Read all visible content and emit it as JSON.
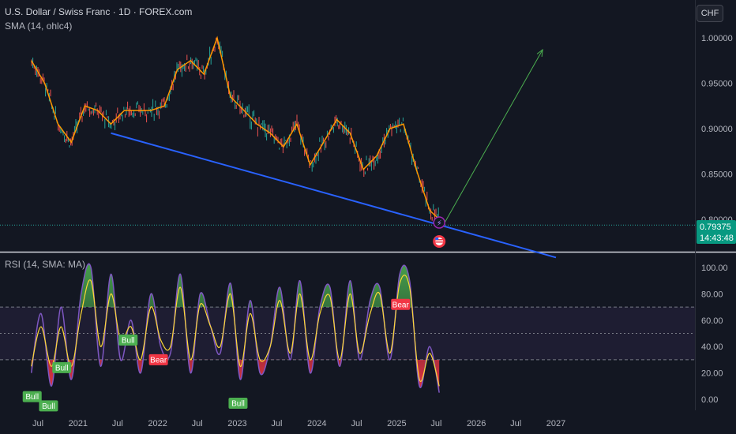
{
  "header": {
    "symbol_line": "U.S. Dollar / Swiss Franc · 1D · FOREX.com",
    "sma_line": "SMA (14, ohlc4)",
    "rsi_line": "RSI (14, SMA: MA)",
    "currency_button": "CHF"
  },
  "price_badge": {
    "price": "0.79375",
    "countdown": "14:43:48"
  },
  "colors": {
    "background": "#131722",
    "trendline": "#2962ff",
    "projection_arrow": "#4caf50",
    "sma": "#ff9800",
    "rsi_line": "#7e57c2",
    "rsi_ma": "#fdd835",
    "bull_tag": "#4caf50",
    "bear_tag": "#f23645",
    "up_candle": "#26a69a",
    "down_candle": "#ef5350"
  },
  "chart_data": [
    {
      "type": "line",
      "title": "U.S. Dollar / Swiss Franc · 1D · FOREX.com",
      "y_axis_ticks": [
        "1.00000",
        "0.95000",
        "0.90000",
        "0.85000",
        "0.80000"
      ],
      "ylim": [
        0.785,
        1.025
      ],
      "x_axis_ticks": [
        "Jul",
        "2021",
        "Jul",
        "2022",
        "Jul",
        "2023",
        "Jul",
        "2024",
        "Jul",
        "2025",
        "Jul",
        "2026",
        "Jul",
        "2027"
      ],
      "x": [
        "2020-06-01",
        "2020-08-01",
        "2020-10-01",
        "2020-12-01",
        "2021-02-01",
        "2021-04-01",
        "2021-06-01",
        "2021-08-01",
        "2021-10-01",
        "2021-12-01",
        "2022-02-01",
        "2022-04-01",
        "2022-06-01",
        "2022-08-01",
        "2022-10-01",
        "2022-12-01",
        "2023-02-01",
        "2023-04-01",
        "2023-06-01",
        "2023-08-01",
        "2023-10-01",
        "2023-12-01",
        "2024-02-01",
        "2024-04-01",
        "2024-06-01",
        "2024-08-01",
        "2024-10-01",
        "2024-12-01",
        "2025-02-01",
        "2025-04-01",
        "2025-06-01",
        "2025-07-15"
      ],
      "series": [
        {
          "name": "SMA (14, ohlc4)",
          "values": [
            0.975,
            0.95,
            0.905,
            0.885,
            0.925,
            0.92,
            0.905,
            0.92,
            0.92,
            0.92,
            0.925,
            0.965,
            0.975,
            0.96,
            1.0,
            0.935,
            0.92,
            0.905,
            0.895,
            0.88,
            0.905,
            0.86,
            0.885,
            0.91,
            0.895,
            0.855,
            0.87,
            0.9,
            0.905,
            0.855,
            0.81,
            0.8
          ]
        }
      ],
      "trendline": {
        "from": [
          "2021-06-01",
          0.895
        ],
        "to": [
          "2027-01-01",
          0.758
        ]
      },
      "projection_arrow": {
        "from": [
          "2025-08-01",
          0.793
        ],
        "to": [
          "2026-11-01",
          0.987
        ]
      },
      "last_price": 0.79375
    },
    {
      "type": "line",
      "title": "RSI (14, SMA: MA)",
      "y_axis_ticks": [
        "100.00",
        "80.00",
        "60.00",
        "40.00",
        "20.00",
        "0.00"
      ],
      "ylim": [
        -5,
        105
      ],
      "bands": {
        "upper": 70,
        "middle": 50,
        "lower": 30
      },
      "x": [
        "2020-06-01",
        "2020-07-15",
        "2020-09-01",
        "2020-10-15",
        "2020-12-01",
        "2021-01-15",
        "2021-03-01",
        "2021-04-15",
        "2021-06-01",
        "2021-07-15",
        "2021-09-01",
        "2021-10-15",
        "2021-12-01",
        "2022-01-15",
        "2022-03-01",
        "2022-04-15",
        "2022-06-01",
        "2022-07-15",
        "2022-09-01",
        "2022-10-15",
        "2022-12-01",
        "2023-01-15",
        "2023-03-01",
        "2023-04-15",
        "2023-06-01",
        "2023-07-15",
        "2023-09-01",
        "2023-10-15",
        "2023-12-01",
        "2024-01-15",
        "2024-03-01",
        "2024-04-15",
        "2024-06-01",
        "2024-07-15",
        "2024-09-01",
        "2024-10-15",
        "2024-12-01",
        "2025-01-15",
        "2025-03-01",
        "2025-04-15",
        "2025-06-01",
        "2025-07-15"
      ],
      "series": [
        {
          "name": "RSI",
          "values": [
            20,
            65,
            10,
            70,
            15,
            80,
            100,
            25,
            95,
            30,
            60,
            20,
            80,
            40,
            35,
            95,
            20,
            80,
            55,
            35,
            88,
            15,
            75,
            20,
            40,
            85,
            30,
            90,
            20,
            70,
            85,
            25,
            90,
            30,
            75,
            85,
            30,
            95,
            90,
            10,
            40,
            5
          ]
        },
        {
          "name": "MA",
          "values": [
            25,
            55,
            25,
            55,
            25,
            65,
            90,
            40,
            80,
            45,
            55,
            30,
            70,
            45,
            40,
            85,
            30,
            72,
            55,
            40,
            80,
            25,
            65,
            30,
            40,
            75,
            35,
            80,
            30,
            65,
            78,
            30,
            80,
            35,
            65,
            80,
            35,
            88,
            85,
            15,
            35,
            10
          ]
        }
      ],
      "signals": [
        {
          "label": "Bull",
          "x": "2020-06-01",
          "y": 2
        },
        {
          "label": "Bull",
          "x": "2020-08-15",
          "y": -5
        },
        {
          "label": "Bull",
          "x": "2020-10-15",
          "y": 24
        },
        {
          "label": "Bull",
          "x": "2021-08-15",
          "y": 45
        },
        {
          "label": "Bear",
          "x": "2022-01-01",
          "y": 30
        },
        {
          "label": "Bull",
          "x": "2023-01-01",
          "y": -3
        },
        {
          "label": "Bear",
          "x": "2025-01-15",
          "y": 72
        }
      ]
    }
  ]
}
